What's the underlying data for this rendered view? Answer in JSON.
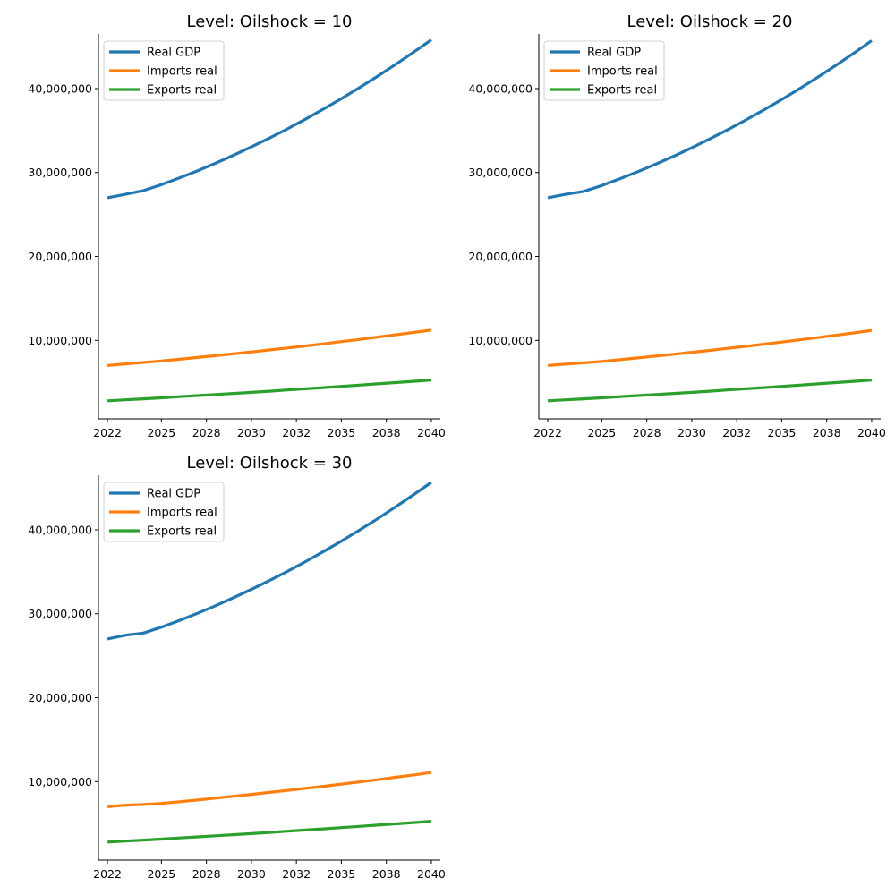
{
  "chart_data": [
    {
      "type": "line",
      "title": "Level: Oilshock =  10",
      "xlabel": "",
      "ylabel": "",
      "x": [
        2022,
        2023,
        2024,
        2025,
        2026,
        2027,
        2028,
        2029,
        2030,
        2031,
        2032,
        2033,
        2034,
        2035,
        2036,
        2037,
        2038,
        2039,
        2040
      ],
      "x_ticks": [
        2022,
        2025,
        2027.5,
        2030,
        2032.5,
        2035,
        2037.5,
        2040
      ],
      "x_tick_labels": [
        "2022",
        "2025",
        "2028",
        "2030",
        "2032",
        "2035",
        "2038",
        "2040"
      ],
      "y_ticks": [
        10000000,
        20000000,
        30000000,
        40000000
      ],
      "y_tick_labels": [
        "10,000,000",
        "20,000,000",
        "30,000,000",
        "40,000,000"
      ],
      "xlim": [
        2021.5,
        2040.5
      ],
      "ylim": [
        650000,
        46500000
      ],
      "legend": "top-left",
      "grid": false,
      "series": [
        {
          "name": "Real GDP",
          "color": "#1f77b4",
          "values": [
            27000000,
            27400000,
            27850000,
            28550000,
            29350000,
            30200000,
            31100000,
            32050000,
            33050000,
            34100000,
            35200000,
            36350000,
            37550000,
            38800000,
            40100000,
            41450000,
            42850000,
            44300000,
            45800000
          ]
        },
        {
          "name": "Imports real",
          "color": "#ff7f0e",
          "values": [
            7000000,
            7200000,
            7370000,
            7550000,
            7750000,
            7960000,
            8180000,
            8400000,
            8630000,
            8860000,
            9100000,
            9340000,
            9590000,
            9850000,
            10110000,
            10380000,
            10660000,
            10940000,
            11230000
          ]
        },
        {
          "name": "Exports real",
          "color": "#2ca02c",
          "values": [
            2800000,
            2920000,
            3040000,
            3160000,
            3290000,
            3420000,
            3550000,
            3680000,
            3810000,
            3950000,
            4090000,
            4230000,
            4370000,
            4520000,
            4670000,
            4820000,
            4970000,
            5120000,
            5280000
          ]
        }
      ]
    },
    {
      "type": "line",
      "title": "Level: Oilshock =  20",
      "xlabel": "",
      "ylabel": "",
      "x": [
        2022,
        2023,
        2024,
        2025,
        2026,
        2027,
        2028,
        2029,
        2030,
        2031,
        2032,
        2033,
        2034,
        2035,
        2036,
        2037,
        2038,
        2039,
        2040
      ],
      "x_ticks": [
        2022,
        2025,
        2027.5,
        2030,
        2032.5,
        2035,
        2037.5,
        2040
      ],
      "x_tick_labels": [
        "2022",
        "2025",
        "2028",
        "2030",
        "2032",
        "2035",
        "2038",
        "2040"
      ],
      "y_ticks": [
        10000000,
        20000000,
        30000000,
        40000000
      ],
      "y_tick_labels": [
        "10,000,000",
        "20,000,000",
        "30,000,000",
        "40,000,000"
      ],
      "xlim": [
        2021.5,
        2040.5
      ],
      "ylim": [
        650000,
        46500000
      ],
      "legend": "top-left",
      "grid": false,
      "series": [
        {
          "name": "Real GDP",
          "color": "#1f77b4",
          "values": [
            27000000,
            27400000,
            27750000,
            28450000,
            29250000,
            30100000,
            31000000,
            31950000,
            32950000,
            34000000,
            35100000,
            36250000,
            37450000,
            38700000,
            40000000,
            41350000,
            42750000,
            44200000,
            45700000
          ]
        },
        {
          "name": "Imports real",
          "color": "#ff7f0e",
          "values": [
            7000000,
            7180000,
            7330000,
            7500000,
            7700000,
            7910000,
            8130000,
            8350000,
            8580000,
            8810000,
            9050000,
            9290000,
            9540000,
            9800000,
            10060000,
            10330000,
            10610000,
            10890000,
            11180000
          ]
        },
        {
          "name": "Exports real",
          "color": "#2ca02c",
          "values": [
            2800000,
            2920000,
            3040000,
            3160000,
            3290000,
            3420000,
            3550000,
            3680000,
            3810000,
            3950000,
            4090000,
            4230000,
            4370000,
            4520000,
            4670000,
            4820000,
            4970000,
            5120000,
            5280000
          ]
        }
      ]
    },
    {
      "type": "line",
      "title": "Level: Oilshock =  30",
      "xlabel": "",
      "ylabel": "",
      "x": [
        2022,
        2023,
        2024,
        2025,
        2026,
        2027,
        2028,
        2029,
        2030,
        2031,
        2032,
        2033,
        2034,
        2035,
        2036,
        2037,
        2038,
        2039,
        2040
      ],
      "x_ticks": [
        2022,
        2025,
        2027.5,
        2030,
        2032.5,
        2035,
        2037.5,
        2040
      ],
      "x_tick_labels": [
        "2022",
        "2025",
        "2028",
        "2030",
        "2032",
        "2035",
        "2038",
        "2040"
      ],
      "y_ticks": [
        10000000,
        20000000,
        30000000,
        40000000
      ],
      "y_tick_labels": [
        "10,000,000",
        "20,000,000",
        "30,000,000",
        "40,000,000"
      ],
      "xlim": [
        2021.5,
        2040.5
      ],
      "ylim": [
        650000,
        46500000
      ],
      "legend": "top-left",
      "grid": false,
      "series": [
        {
          "name": "Real GDP",
          "color": "#1f77b4",
          "values": [
            27000000,
            27450000,
            27700000,
            28400000,
            29200000,
            30050000,
            30950000,
            31900000,
            32900000,
            33950000,
            35050000,
            36200000,
            37400000,
            38650000,
            39950000,
            41300000,
            42700000,
            44150000,
            45650000
          ]
        },
        {
          "name": "Imports real",
          "color": "#ff7f0e",
          "values": [
            7000000,
            7200000,
            7280000,
            7400000,
            7600000,
            7810000,
            8030000,
            8250000,
            8480000,
            8710000,
            8950000,
            9190000,
            9440000,
            9700000,
            9960000,
            10230000,
            10510000,
            10790000,
            11080000
          ]
        },
        {
          "name": "Exports real",
          "color": "#2ca02c",
          "values": [
            2800000,
            2920000,
            3040000,
            3160000,
            3290000,
            3420000,
            3550000,
            3680000,
            3810000,
            3950000,
            4090000,
            4230000,
            4370000,
            4520000,
            4670000,
            4820000,
            4970000,
            5120000,
            5280000
          ]
        }
      ]
    }
  ]
}
